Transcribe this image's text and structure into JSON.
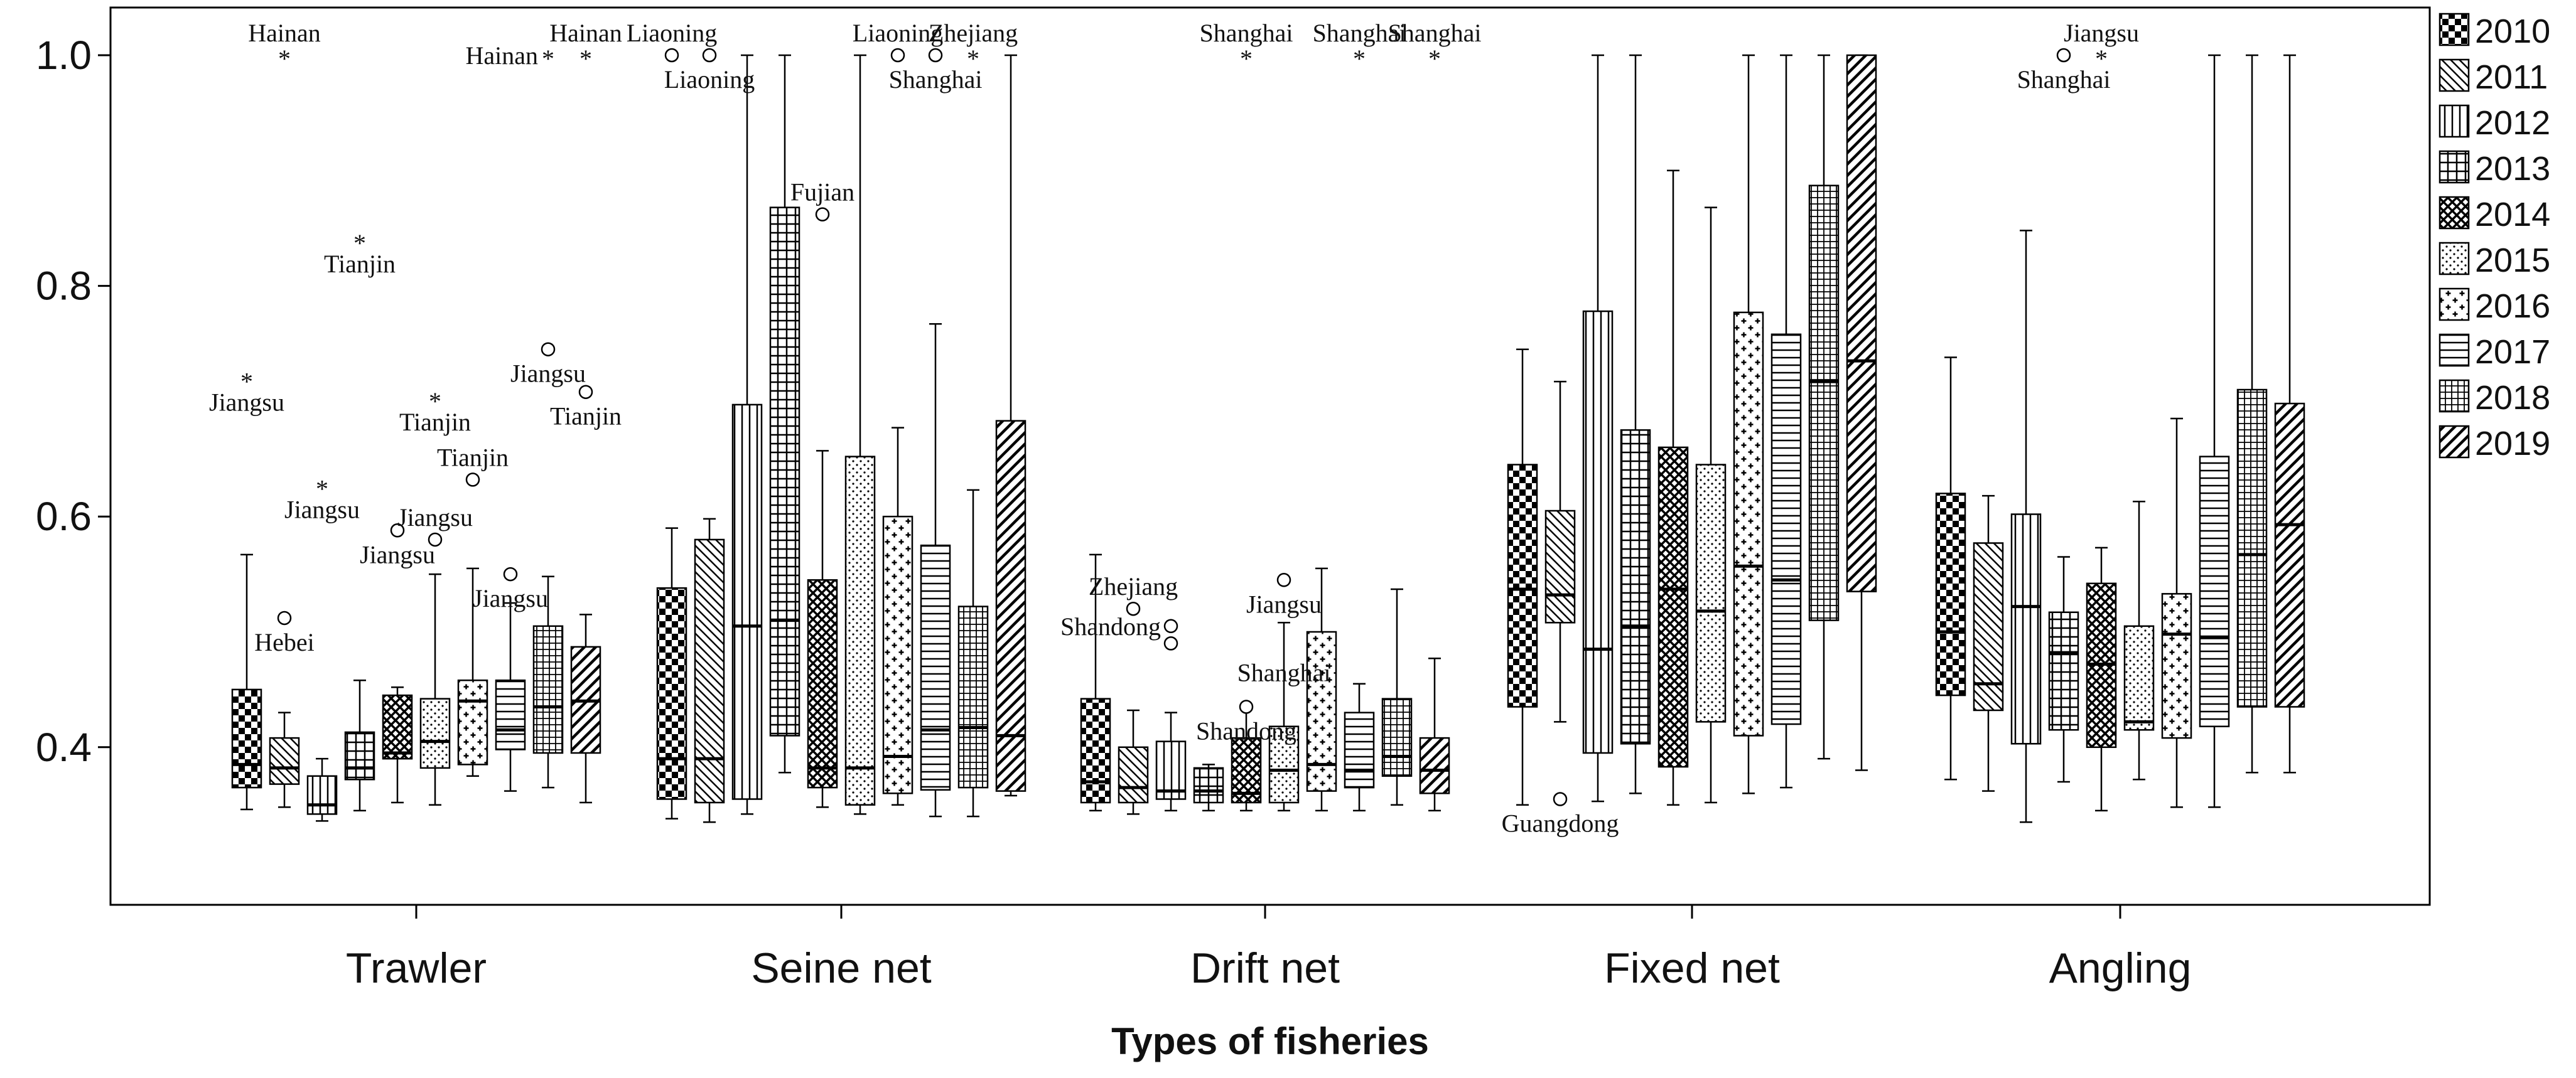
{
  "chart_data": {
    "type": "boxplot",
    "title": "",
    "xlabel": "Types of fisheries",
    "ylabel": "",
    "ylim": [
      0.27,
      1.02
    ],
    "yticks": [
      "0.4",
      "0.6",
      "0.8",
      "1.0"
    ],
    "ytick_values": [
      0.4,
      0.6,
      0.8,
      1.0
    ],
    "legend_position": "right",
    "years": [
      "2010",
      "2011",
      "2012",
      "2013",
      "2014",
      "2015",
      "2016",
      "2017",
      "2018",
      "2019"
    ],
    "patterns": [
      "checker",
      "diag-down",
      "vertical",
      "grid",
      "crosshatch",
      "dots",
      "plus",
      "horizontal",
      "grid-fine",
      "diag-up"
    ],
    "categories": [
      {
        "name": "Trawler",
        "boxes": [
          {
            "year": "2010",
            "wlow": 0.346,
            "q1": 0.365,
            "median": 0.385,
            "q3": 0.45,
            "whigh": 0.567
          },
          {
            "year": "2011",
            "wlow": 0.348,
            "q1": 0.368,
            "median": 0.382,
            "q3": 0.408,
            "whigh": 0.43
          },
          {
            "year": "2012",
            "wlow": 0.336,
            "q1": 0.342,
            "median": 0.35,
            "q3": 0.375,
            "whigh": 0.39
          },
          {
            "year": "2013",
            "wlow": 0.345,
            "q1": 0.372,
            "median": 0.382,
            "q3": 0.413,
            "whigh": 0.458
          },
          {
            "year": "2014",
            "wlow": 0.352,
            "q1": 0.39,
            "median": 0.395,
            "q3": 0.445,
            "whigh": 0.452
          },
          {
            "year": "2015",
            "wlow": 0.35,
            "q1": 0.382,
            "median": 0.405,
            "q3": 0.442,
            "whigh": 0.55
          },
          {
            "year": "2016",
            "wlow": 0.375,
            "q1": 0.385,
            "median": 0.44,
            "q3": 0.458,
            "whigh": 0.555
          },
          {
            "year": "2017",
            "wlow": 0.362,
            "q1": 0.398,
            "median": 0.415,
            "q3": 0.458,
            "whigh": 0.525
          },
          {
            "year": "2018",
            "wlow": 0.365,
            "q1": 0.395,
            "median": 0.435,
            "q3": 0.505,
            "whigh": 0.548
          },
          {
            "year": "2019",
            "wlow": 0.352,
            "q1": 0.395,
            "median": 0.44,
            "q3": 0.487,
            "whigh": 0.515
          }
        ],
        "outliers": [
          {
            "year": "2010",
            "value": 0.72,
            "symbol": "*",
            "label": "Jiangsu",
            "label_pos": "below"
          },
          {
            "year": "2011",
            "value": 1.0,
            "symbol": "*",
            "label": "Hainan",
            "label_pos": "above"
          },
          {
            "year": "2011",
            "value": 0.512,
            "symbol": "o",
            "label": "Hebei",
            "label_pos": "below"
          },
          {
            "year": "2012",
            "value": 0.627,
            "symbol": "*",
            "label": "Jiangsu",
            "label_pos": "below"
          },
          {
            "year": "2013",
            "value": 0.84,
            "symbol": "*",
            "label": "Tianjin",
            "label_pos": "below"
          },
          {
            "year": "2014",
            "value": 0.588,
            "symbol": "o",
            "label": "Jiangsu",
            "label_pos": "below"
          },
          {
            "year": "2015",
            "value": 0.703,
            "symbol": "*",
            "label": "Tianjin",
            "label_pos": "below"
          },
          {
            "year": "2015",
            "value": 0.58,
            "symbol": "o",
            "label": "Jiangsu",
            "label_pos": "above"
          },
          {
            "year": "2016",
            "value": 0.632,
            "symbol": "o",
            "label": "Tianjin",
            "label_pos": "above"
          },
          {
            "year": "2017",
            "value": 0.55,
            "symbol": "o",
            "label": "Jiangsu",
            "label_pos": "below"
          },
          {
            "year": "2018",
            "value": 1.0,
            "symbol": "*",
            "label": "Hainan",
            "label_pos": "left"
          },
          {
            "year": "2018",
            "value": 0.745,
            "symbol": "o",
            "label": "Jiangsu",
            "label_pos": "below"
          },
          {
            "year": "2019",
            "value": 1.0,
            "symbol": "*",
            "label": "Hainan",
            "label_pos": "above"
          },
          {
            "year": "2019",
            "value": 0.708,
            "symbol": "o",
            "label": "Tianjin",
            "label_pos": "below"
          }
        ]
      },
      {
        "name": "Seine net",
        "boxes": [
          {
            "year": "2010",
            "wlow": 0.338,
            "q1": 0.355,
            "median": 0.39,
            "q3": 0.538,
            "whigh": 0.59
          },
          {
            "year": "2011",
            "wlow": 0.335,
            "q1": 0.352,
            "median": 0.39,
            "q3": 0.58,
            "whigh": 0.598
          },
          {
            "year": "2012",
            "wlow": 0.342,
            "q1": 0.355,
            "median": 0.505,
            "q3": 0.697,
            "whigh": 1.0
          },
          {
            "year": "2013",
            "wlow": 0.378,
            "q1": 0.41,
            "median": 0.51,
            "q3": 0.868,
            "whigh": 1.0
          },
          {
            "year": "2014",
            "wlow": 0.348,
            "q1": 0.365,
            "median": 0.382,
            "q3": 0.545,
            "whigh": 0.657
          },
          {
            "year": "2015",
            "wlow": 0.342,
            "q1": 0.35,
            "median": 0.382,
            "q3": 0.652,
            "whigh": 1.0
          },
          {
            "year": "2016",
            "wlow": 0.35,
            "q1": 0.36,
            "median": 0.392,
            "q3": 0.6,
            "whigh": 0.677
          },
          {
            "year": "2017",
            "wlow": 0.34,
            "q1": 0.363,
            "median": 0.415,
            "q3": 0.575,
            "whigh": 0.767
          },
          {
            "year": "2018",
            "wlow": 0.34,
            "q1": 0.365,
            "median": 0.417,
            "q3": 0.522,
            "whigh": 0.623
          },
          {
            "year": "2019",
            "wlow": 0.358,
            "q1": 0.362,
            "median": 0.41,
            "q3": 0.683,
            "whigh": 1.0
          }
        ],
        "outliers": [
          {
            "year": "2010",
            "value": 1.0,
            "symbol": "o",
            "label": "Liaoning",
            "label_pos": "above"
          },
          {
            "year": "2011",
            "value": 1.0,
            "symbol": "o",
            "label": "Liaoning",
            "label_pos": "below"
          },
          {
            "year": "2014",
            "value": 0.862,
            "symbol": "o",
            "label": "Fujian",
            "label_pos": "above"
          },
          {
            "year": "2016",
            "value": 1.0,
            "symbol": "o",
            "label": "Liaoning",
            "label_pos": "above"
          },
          {
            "year": "2017",
            "value": 1.0,
            "symbol": "o",
            "label": "Shanghai",
            "label_pos": "below"
          },
          {
            "year": "2018",
            "value": 1.0,
            "symbol": "*",
            "label": "Zhejiang",
            "label_pos": "above"
          }
        ]
      },
      {
        "name": "Drift net",
        "boxes": [
          {
            "year": "2010",
            "wlow": 0.345,
            "q1": 0.352,
            "median": 0.37,
            "q3": 0.442,
            "whigh": 0.567
          },
          {
            "year": "2011",
            "wlow": 0.342,
            "q1": 0.352,
            "median": 0.365,
            "q3": 0.4,
            "whigh": 0.432
          },
          {
            "year": "2012",
            "wlow": 0.345,
            "q1": 0.355,
            "median": 0.362,
            "q3": 0.405,
            "whigh": 0.43
          },
          {
            "year": "2013",
            "wlow": 0.345,
            "q1": 0.352,
            "median": 0.362,
            "q3": 0.382,
            "whigh": 0.385
          },
          {
            "year": "2014",
            "wlow": 0.345,
            "q1": 0.352,
            "median": 0.36,
            "q3": 0.408,
            "whigh": 0.435
          },
          {
            "year": "2015",
            "wlow": 0.345,
            "q1": 0.352,
            "median": 0.38,
            "q3": 0.418,
            "whigh": 0.508
          },
          {
            "year": "2016",
            "wlow": 0.345,
            "q1": 0.362,
            "median": 0.385,
            "q3": 0.5,
            "whigh": 0.555
          },
          {
            "year": "2017",
            "wlow": 0.345,
            "q1": 0.365,
            "median": 0.38,
            "q3": 0.43,
            "whigh": 0.455
          },
          {
            "year": "2018",
            "wlow": 0.35,
            "q1": 0.375,
            "median": 0.392,
            "q3": 0.442,
            "whigh": 0.537
          },
          {
            "year": "2019",
            "wlow": 0.345,
            "q1": 0.36,
            "median": 0.38,
            "q3": 0.408,
            "whigh": 0.477
          }
        ],
        "outliers": [
          {
            "year": "2011",
            "value": 0.52,
            "symbol": "o",
            "label": "Zhejiang",
            "label_pos": "above"
          },
          {
            "year": "2012",
            "value": 0.505,
            "symbol": "o",
            "label": "Shandong",
            "label_pos": "left"
          },
          {
            "year": "2012",
            "value": 0.49,
            "symbol": "o",
            "label": "",
            "label_pos": "none"
          },
          {
            "year": "2014",
            "value": 1.0,
            "symbol": "*",
            "label": "Shanghai",
            "label_pos": "above"
          },
          {
            "year": "2014",
            "value": 0.435,
            "symbol": "o",
            "label": "Shandong",
            "label_pos": "below"
          },
          {
            "year": "2015",
            "value": 0.545,
            "symbol": "o",
            "label": "Jiangsu",
            "label_pos": "below"
          },
          {
            "year": "2017",
            "value": 1.0,
            "symbol": "*",
            "label": "Shanghai",
            "label_pos": "above"
          },
          {
            "year": "2019",
            "value": 1.0,
            "symbol": "*",
            "label": "Shanghai",
            "label_pos": "above"
          },
          {
            "year": "2015",
            "value": 0.465,
            "symbol": "none",
            "label": "Shanghai",
            "label_pos": "text"
          }
        ]
      },
      {
        "name": "Fixed net",
        "boxes": [
          {
            "year": "2010",
            "wlow": 0.35,
            "q1": 0.435,
            "median": 0.537,
            "q3": 0.645,
            "whigh": 0.745
          },
          {
            "year": "2011",
            "wlow": 0.422,
            "q1": 0.508,
            "median": 0.532,
            "q3": 0.605,
            "whigh": 0.717
          },
          {
            "year": "2012",
            "wlow": 0.353,
            "q1": 0.395,
            "median": 0.485,
            "q3": 0.778,
            "whigh": 1.0
          },
          {
            "year": "2013",
            "wlow": 0.36,
            "q1": 0.403,
            "median": 0.505,
            "q3": 0.675,
            "whigh": 1.0
          },
          {
            "year": "2014",
            "wlow": 0.35,
            "q1": 0.383,
            "median": 0.537,
            "q3": 0.66,
            "whigh": 0.9
          },
          {
            "year": "2015",
            "wlow": 0.352,
            "q1": 0.422,
            "median": 0.518,
            "q3": 0.645,
            "whigh": 0.868
          },
          {
            "year": "2016",
            "wlow": 0.36,
            "q1": 0.41,
            "median": 0.557,
            "q3": 0.777,
            "whigh": 1.0
          },
          {
            "year": "2017",
            "wlow": 0.365,
            "q1": 0.42,
            "median": 0.545,
            "q3": 0.758,
            "whigh": 1.0
          },
          {
            "year": "2018",
            "wlow": 0.39,
            "q1": 0.51,
            "median": 0.717,
            "q3": 0.887,
            "whigh": 1.0
          },
          {
            "year": "2019",
            "wlow": 0.38,
            "q1": 0.535,
            "median": 0.735,
            "q3": 1.0,
            "whigh": 1.0
          }
        ],
        "outliers": [
          {
            "year": "2011",
            "value": 0.355,
            "symbol": "o",
            "label": "Guangdong",
            "label_pos": "below"
          }
        ]
      },
      {
        "name": "Angling",
        "boxes": [
          {
            "year": "2010",
            "wlow": 0.372,
            "q1": 0.445,
            "median": 0.5,
            "q3": 0.62,
            "whigh": 0.738
          },
          {
            "year": "2011",
            "wlow": 0.362,
            "q1": 0.432,
            "median": 0.455,
            "q3": 0.577,
            "whigh": 0.618
          },
          {
            "year": "2012",
            "wlow": 0.335,
            "q1": 0.403,
            "median": 0.522,
            "q3": 0.602,
            "whigh": 0.848
          },
          {
            "year": "2013",
            "wlow": 0.37,
            "q1": 0.415,
            "median": 0.482,
            "q3": 0.517,
            "whigh": 0.565
          },
          {
            "year": "2014",
            "wlow": 0.345,
            "q1": 0.4,
            "median": 0.472,
            "q3": 0.542,
            "whigh": 0.573
          },
          {
            "year": "2015",
            "wlow": 0.372,
            "q1": 0.415,
            "median": 0.422,
            "q3": 0.505,
            "whigh": 0.613
          },
          {
            "year": "2016",
            "wlow": 0.348,
            "q1": 0.408,
            "median": 0.498,
            "q3": 0.533,
            "whigh": 0.685
          },
          {
            "year": "2017",
            "wlow": 0.348,
            "q1": 0.418,
            "median": 0.495,
            "q3": 0.652,
            "whigh": 1.0
          },
          {
            "year": "2018",
            "wlow": 0.378,
            "q1": 0.435,
            "median": 0.567,
            "q3": 0.71,
            "whigh": 1.0
          },
          {
            "year": "2019",
            "wlow": 0.378,
            "q1": 0.435,
            "median": 0.593,
            "q3": 0.698,
            "whigh": 1.0
          }
        ],
        "outliers": [
          {
            "year": "2013",
            "value": 1.0,
            "symbol": "o",
            "label": "Shanghai",
            "label_pos": "below"
          },
          {
            "year": "2014",
            "value": 1.0,
            "symbol": "*",
            "label": "Jiangsu",
            "label_pos": "above"
          }
        ]
      }
    ]
  }
}
